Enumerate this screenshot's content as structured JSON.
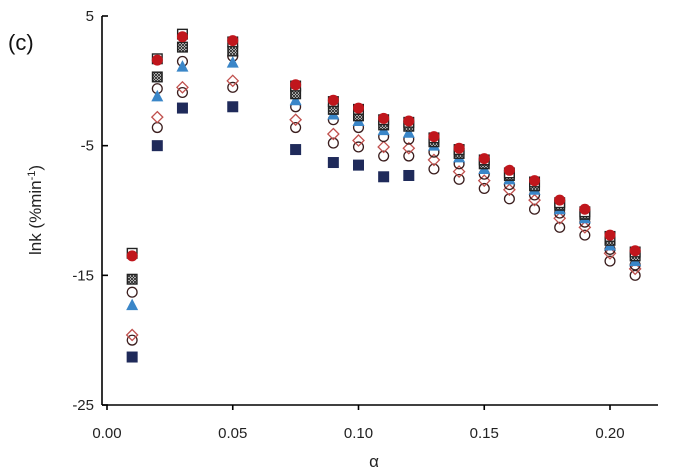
{
  "chart_data": {
    "type": "scatter",
    "panel_label": "(c)",
    "xlabel": "α",
    "ylabel": "lnk (%min",
    "ylabel_sup": "-1",
    "ylabel_end": ")",
    "xlim": [
      0.0,
      0.235
    ],
    "ylim": [
      -25,
      5
    ],
    "x_ticks": [
      0.0,
      0.05,
      0.1,
      0.15,
      0.2
    ],
    "x_tick_labels": [
      "0.00",
      "0.05",
      "0.10",
      "0.15",
      "0.20"
    ],
    "y_ticks": [
      5,
      -5,
      -15,
      -25
    ],
    "y_tick_labels": [
      "5",
      "-5",
      "-15",
      "-25"
    ],
    "grid": false,
    "legend": "none",
    "x": [
      0.01,
      0.02,
      0.03,
      0.05,
      0.075,
      0.09,
      0.1,
      0.11,
      0.12,
      0.13,
      0.14,
      0.15,
      0.16,
      0.17,
      0.18,
      0.19,
      0.2,
      0.21
    ],
    "series": [
      {
        "marker": "square-filled",
        "color": "#1f2a5a",
        "values": [
          -21.3,
          -5.0,
          -2.1,
          -2.0,
          -5.3,
          -6.3,
          -6.5,
          -7.4,
          -7.3,
          null,
          null,
          null,
          null,
          null,
          null,
          null,
          null,
          null
        ]
      },
      {
        "marker": "circle-open",
        "color": "#3a1d1d",
        "values": [
          -20.0,
          -3.6,
          -0.9,
          -0.5,
          -3.6,
          -4.8,
          -5.1,
          -5.8,
          -5.8,
          -6.8,
          -7.6,
          -8.3,
          -9.1,
          -9.9,
          -11.3,
          -11.9,
          -13.9,
          -15.0
        ]
      },
      {
        "marker": "diamond-open",
        "color": "#c0504d",
        "values": [
          -19.6,
          -2.8,
          -0.5,
          0.0,
          -3.0,
          -4.1,
          -4.6,
          -5.1,
          -5.2,
          -6.1,
          -7.0,
          -7.7,
          -8.4,
          -9.2,
          -10.6,
          -11.3,
          -13.3,
          -14.5
        ]
      },
      {
        "marker": "circle-open",
        "color": "#3a1d1d",
        "values": [
          -16.3,
          -0.6,
          1.5,
          1.9,
          -2.0,
          -3.0,
          -3.6,
          -4.3,
          -4.5,
          -5.5,
          -6.4,
          -7.2,
          -8.0,
          -8.8,
          -10.2,
          -10.9,
          -13.0,
          -14.2
        ]
      },
      {
        "marker": "triangle-filled",
        "color": "#3a86c8",
        "values": [
          -17.3,
          -1.2,
          1.1,
          1.4,
          -1.5,
          -2.6,
          -3.1,
          -3.8,
          -4.0,
          -5.0,
          -5.9,
          -6.8,
          -7.6,
          -8.4,
          -9.9,
          -10.6,
          -12.7,
          -13.9
        ]
      },
      {
        "marker": "square-hatched",
        "color": "#222222",
        "values": [
          -15.3,
          0.3,
          2.6,
          2.3,
          -1.0,
          -2.2,
          -2.7,
          -3.4,
          -3.5,
          -4.7,
          -5.6,
          -6.4,
          -7.3,
          -8.1,
          -9.6,
          -10.3,
          -12.3,
          -13.5
        ]
      },
      {
        "marker": "square-open",
        "color": "#222222",
        "values": [
          -13.3,
          1.7,
          3.6,
          3.0,
          -0.4,
          -1.6,
          -2.2,
          -3.0,
          -3.2,
          -4.4,
          -5.3,
          -6.1,
          -7.1,
          -7.8,
          -9.4,
          -10.1,
          -12.0,
          -13.2
        ]
      },
      {
        "marker": "circle-filled",
        "color": "#c0161c",
        "values": [
          -13.5,
          1.6,
          3.4,
          3.1,
          -0.3,
          -1.5,
          -2.1,
          -2.9,
          -3.1,
          -4.3,
          -5.2,
          -6.0,
          -6.9,
          -7.7,
          -9.2,
          -9.9,
          -11.9,
          -13.1
        ]
      }
    ]
  }
}
